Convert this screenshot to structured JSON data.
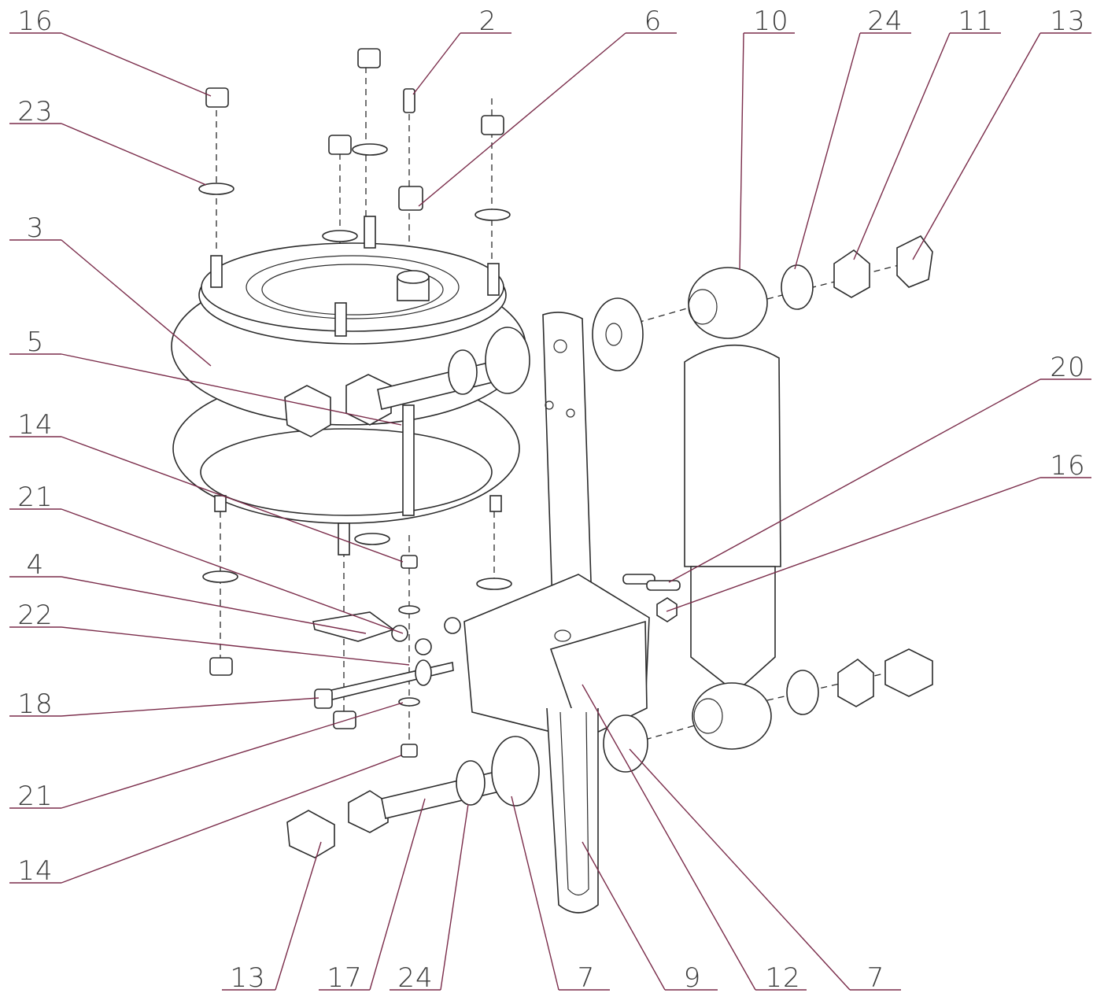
{
  "callouts": [
    "16",
    "23",
    "3",
    "5",
    "14",
    "21",
    "4",
    "22",
    "18",
    "21",
    "14",
    "2",
    "6",
    "10",
    "24",
    "11",
    "13",
    "20",
    "16",
    "13",
    "17",
    "24",
    "7",
    "9",
    "12",
    "7"
  ]
}
